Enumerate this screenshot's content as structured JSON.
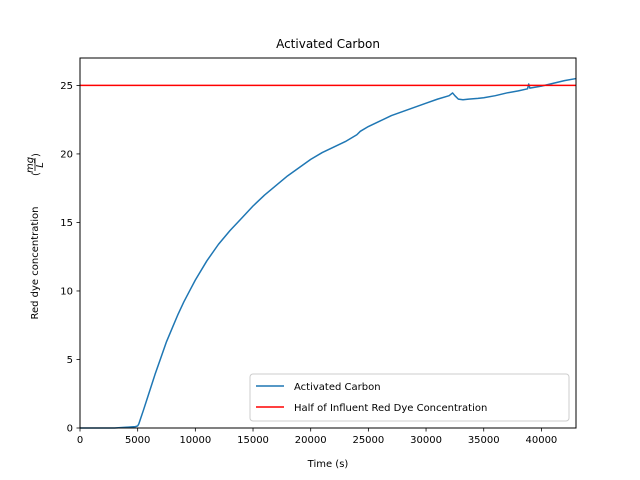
{
  "chart_data": {
    "type": "line",
    "title": "Activated Carbon",
    "xlabel": "Time (s)",
    "ylabel": "Red dye concentration",
    "ylabel_unit_numerator": "mg",
    "ylabel_unit_denominator": "L",
    "xlim": [
      0,
      43000
    ],
    "ylim": [
      0,
      27
    ],
    "xticks": [
      0,
      5000,
      10000,
      15000,
      20000,
      25000,
      30000,
      35000,
      40000
    ],
    "yticks": [
      0,
      5,
      10,
      15,
      20,
      25
    ],
    "grid": false,
    "legend_position": "lower-right",
    "series": [
      {
        "name": "Activated Carbon",
        "color": "#1f77b4",
        "x": [
          0,
          1000,
          2000,
          3000,
          4000,
          4500,
          4800,
          5000,
          5100,
          5300,
          5500,
          6000,
          6500,
          7000,
          7500,
          8000,
          8500,
          9000,
          9500,
          10000,
          11000,
          12000,
          13000,
          14000,
          15000,
          16000,
          17000,
          18000,
          19000,
          20000,
          21000,
          22000,
          23000,
          24000,
          24300,
          25000,
          26000,
          27000,
          28000,
          29000,
          30000,
          31000,
          32000,
          32300,
          32500,
          32800,
          33200,
          33700,
          34500,
          35000,
          36000,
          37000,
          38000,
          38800,
          38900,
          39000,
          40000,
          41000,
          42000,
          43000
        ],
        "y": [
          0.0,
          0.0,
          0.0,
          0.0,
          0.05,
          0.08,
          0.1,
          0.15,
          0.3,
          0.8,
          1.3,
          2.6,
          3.9,
          5.1,
          6.3,
          7.3,
          8.3,
          9.2,
          10.0,
          10.8,
          12.2,
          13.4,
          14.4,
          15.3,
          16.2,
          17.0,
          17.7,
          18.4,
          19.0,
          19.6,
          20.1,
          20.5,
          20.9,
          21.4,
          21.65,
          22.0,
          22.4,
          22.8,
          23.1,
          23.4,
          23.7,
          24.0,
          24.25,
          24.45,
          24.25,
          24.0,
          23.95,
          24.0,
          24.05,
          24.1,
          24.25,
          24.45,
          24.6,
          24.75,
          25.1,
          24.8,
          24.95,
          25.15,
          25.35,
          25.5
        ],
        "note_values": "estimated from axes"
      },
      {
        "name": "Half of Influent Red Dye Concentration",
        "color": "#ff0000",
        "x": [
          0,
          43000
        ],
        "y": [
          25,
          25
        ]
      }
    ]
  }
}
